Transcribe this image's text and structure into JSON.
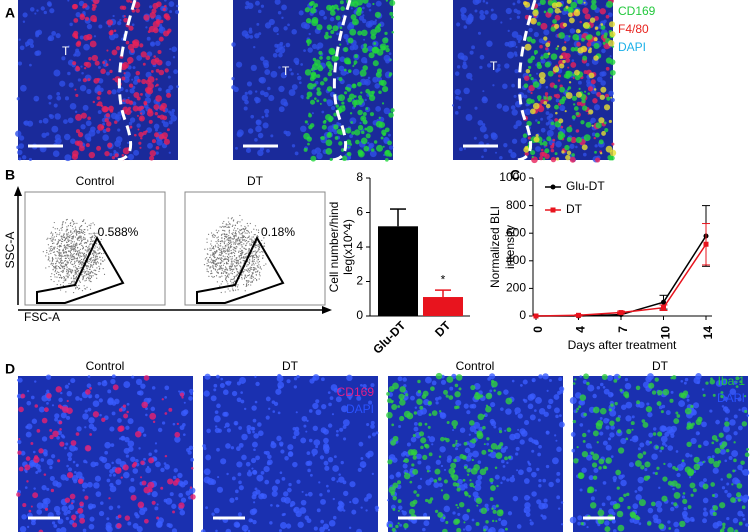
{
  "panel_labels": [
    "A",
    "B",
    "C",
    "D"
  ],
  "panel_a": {
    "region_label": "T",
    "legend": [
      {
        "text": "CD169",
        "color": "#22c83c"
      },
      {
        "text": "F4/80",
        "color": "#e8221e"
      },
      {
        "text": "DAPI",
        "color": "#1ab0e8"
      }
    ]
  },
  "panel_b_flow": {
    "y_axis": "SSC-A",
    "x_axis": "FSC-A",
    "plots": [
      {
        "title": "Control",
        "percent": "0.588%"
      },
      {
        "title": "DT",
        "percent": "0.18%"
      }
    ]
  },
  "panel_d": {
    "titles": [
      "Control",
      "DT",
      "Control",
      "DT"
    ],
    "legend_left": [
      {
        "text": "CD169",
        "color": "#e0208a"
      },
      {
        "text": "DAPI",
        "color": "#2a52ff"
      }
    ],
    "legend_right": [
      {
        "text": "Iba-1",
        "color": "#22c83c"
      },
      {
        "text": "DAPI",
        "color": "#2a52ff"
      }
    ]
  },
  "chart_data": [
    {
      "type": "bar",
      "categories": [
        "Glu-DT",
        "DT"
      ],
      "values": [
        5.2,
        1.1
      ],
      "errors": [
        1.0,
        0.4
      ],
      "colors": [
        "#000000",
        "#e8141e"
      ],
      "y_label": [
        "Cell number/hind",
        "leg(x10^4)"
      ],
      "ylim": [
        0,
        8
      ],
      "yticks": [
        0,
        2,
        4,
        6,
        8
      ],
      "annotation": "*"
    },
    {
      "type": "line",
      "categories": [
        "0",
        "4",
        "7",
        "10",
        "14"
      ],
      "x_label": "Days after treatment",
      "y_label": [
        "Normalized BLI",
        "intensity"
      ],
      "ylim": [
        0,
        1000
      ],
      "yticks": [
        0,
        200,
        400,
        600,
        800,
        1000
      ],
      "legend": "top-left",
      "series": [
        {
          "name": "Glu-DT",
          "color": "#000000",
          "values": [
            0,
            0,
            10,
            100,
            580
          ],
          "errors": [
            0,
            0,
            10,
            50,
            220
          ]
        },
        {
          "name": "DT",
          "color": "#e8141e",
          "values": [
            0,
            5,
            25,
            60,
            520
          ],
          "errors": [
            0,
            5,
            10,
            20,
            150
          ]
        }
      ]
    }
  ]
}
